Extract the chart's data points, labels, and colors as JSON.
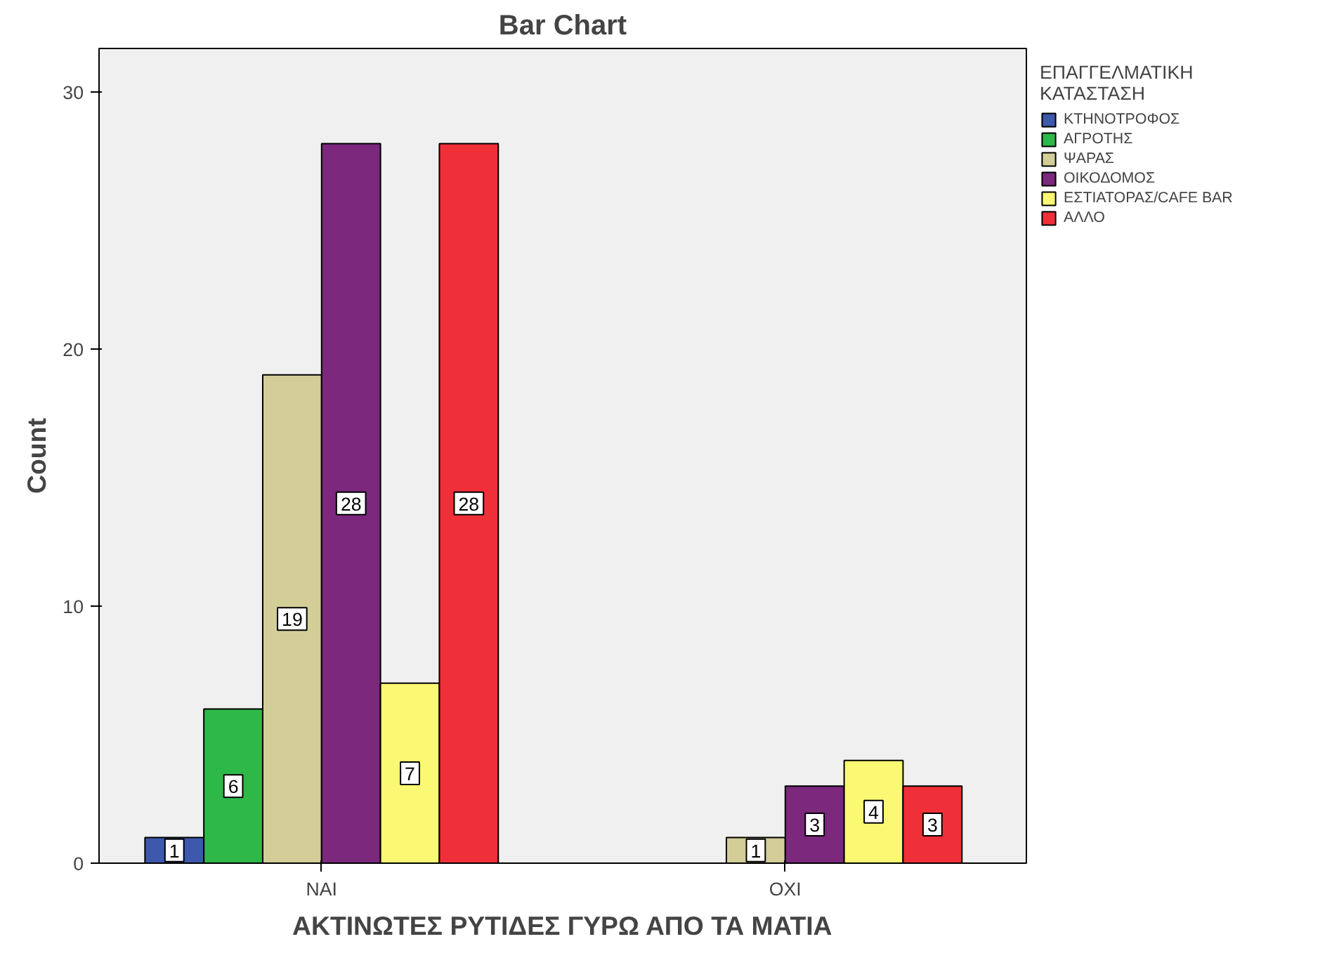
{
  "chart_data": {
    "type": "bar",
    "title": "Bar Chart",
    "xlabel": "ΑΚΤΙΝΩΤΕΣ ΡΥΤΙΔΕΣ ΓΥΡΩ ΑΠΟ ΤΑ ΜΑΤΙΑ",
    "ylabel": "Count",
    "legend_title": "ΕΠΑΓΓΕΛΜΑΤΙΚΗ ΚΑΤΑΣΤΑΣΗ",
    "categories": [
      "ΝΑΙ",
      "ΟΧΙ"
    ],
    "series": [
      {
        "name": "ΚΤΗΝΟΤΡΟΦΟΣ",
        "color": "#3e58ac",
        "values": [
          1,
          null
        ]
      },
      {
        "name": "ΑΓΡΟΤΗΣ",
        "color": "#2eb848",
        "values": [
          6,
          null
        ]
      },
      {
        "name": "ΨΑΡΑΣ",
        "color": "#d3ce97",
        "values": [
          19,
          1
        ]
      },
      {
        "name": "ΟΙΚΟΔΟΜΟΣ",
        "color": "#7b287d",
        "values": [
          28,
          3
        ]
      },
      {
        "name": "ΕΣΤΙΑΤΟΡΑΣ/CAFE BAR",
        "color": "#fbf873",
        "values": [
          7,
          4
        ]
      },
      {
        "name": "ΑΛΛΟ",
        "color": "#ef3038",
        "values": [
          28,
          3
        ]
      }
    ],
    "ylim": [
      0,
      31.7
    ],
    "yticks": [
      0,
      10,
      20,
      30
    ],
    "grid": false,
    "legend": "right",
    "data_labels": true
  }
}
